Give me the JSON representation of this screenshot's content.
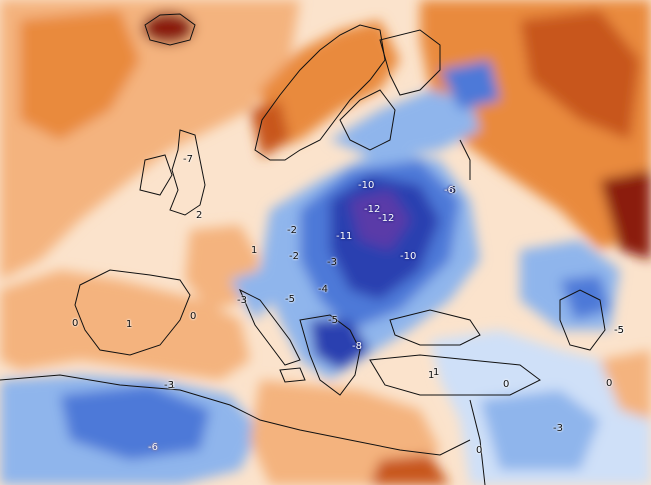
{
  "colors": {
    "deep_red": "#8b1a10",
    "dark_orange": "#c8561a",
    "orange": "#e98a3e",
    "light_orange": "#f4b37e",
    "pale": "#fbe3cc",
    "white": "#ffffff",
    "pale_blue": "#cfe0f8",
    "light_blue": "#8fb5ec",
    "blue": "#4d79d8",
    "dark_blue": "#2a3fb0",
    "navy": "#1a237e",
    "purple": "#5a3aa8",
    "coast": "#111111"
  },
  "labels": [
    {
      "text": "-7",
      "tone": "dark"
    },
    {
      "text": "-6",
      "tone": "dark"
    },
    {
      "text": "-6",
      "tone": "dark"
    },
    {
      "text": "-5",
      "tone": "dark"
    },
    {
      "text": "2",
      "tone": "dark"
    },
    {
      "text": "-10",
      "tone": "white"
    },
    {
      "text": "-12",
      "tone": "white"
    },
    {
      "text": "-12",
      "tone": "white"
    },
    {
      "text": "-11",
      "tone": "white"
    },
    {
      "text": "-10",
      "tone": "white"
    },
    {
      "text": "-6",
      "tone": "white"
    },
    {
      "text": "-2",
      "tone": "dark"
    },
    {
      "text": "-2",
      "tone": "dark"
    },
    {
      "text": "-3",
      "tone": "dark"
    },
    {
      "text": "-4",
      "tone": "dark"
    },
    {
      "text": "-5",
      "tone": "dark"
    },
    {
      "text": "-5",
      "tone": "dark"
    },
    {
      "text": "-8",
      "tone": "white"
    },
    {
      "text": "-3",
      "tone": "dark"
    },
    {
      "text": "1",
      "tone": "dark"
    },
    {
      "text": "1",
      "tone": "dark"
    },
    {
      "text": "0",
      "tone": "dark"
    },
    {
      "text": "1",
      "tone": "dark"
    },
    {
      "text": "0",
      "tone": "dark"
    },
    {
      "text": "1",
      "tone": "dark"
    },
    {
      "text": "-3",
      "tone": "dark"
    },
    {
      "text": "-6",
      "tone": "white"
    },
    {
      "text": "0",
      "tone": "dark"
    },
    {
      "text": "0",
      "tone": "dark"
    },
    {
      "text": "-3",
      "tone": "dark"
    },
    {
      "text": "1",
      "tone": "dark"
    },
    {
      "text": "-5",
      "tone": "dark"
    },
    {
      "text": "0",
      "tone": "dark"
    }
  ]
}
